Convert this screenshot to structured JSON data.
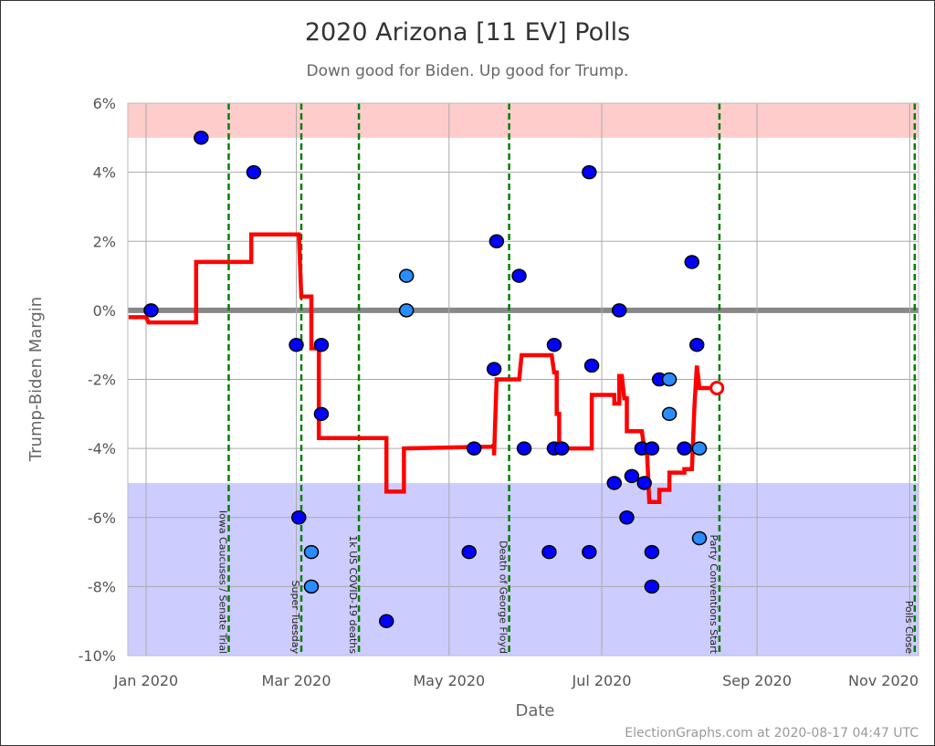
{
  "chart_data": {
    "type": "scatter",
    "title": "2020 Arizona [11 EV] Polls",
    "subtitle": "Down good for Biden. Up good for Trump.",
    "xlabel": "Date",
    "ylabel": "Trump-Biden Margin",
    "xlim": [
      "2019-12-25",
      "2020-11-04"
    ],
    "ylim": [
      -10,
      6
    ],
    "grid": true,
    "x_ticks": [
      {
        "date": "2020-01-01",
        "label": "Jan 2020"
      },
      {
        "date": "2020-03-01",
        "label": "Mar 2020"
      },
      {
        "date": "2020-05-01",
        "label": "May 2020"
      },
      {
        "date": "2020-07-01",
        "label": "Jul 2020"
      },
      {
        "date": "2020-09-01",
        "label": "Sep 2020"
      },
      {
        "date": "2020-11-01",
        "label": "Nov 2020"
      }
    ],
    "y_ticks": [
      {
        "value": 6,
        "label": "6%"
      },
      {
        "value": 4,
        "label": "4%"
      },
      {
        "value": 2,
        "label": "2%"
      },
      {
        "value": 0,
        "label": "0%"
      },
      {
        "value": -2,
        "label": "-2%"
      },
      {
        "value": -4,
        "label": "-4%"
      },
      {
        "value": -6,
        "label": "-6%"
      },
      {
        "value": -8,
        "label": "-8%"
      },
      {
        "value": -10,
        "label": "-10%"
      }
    ],
    "bands": [
      {
        "from": 5,
        "to": 6,
        "color": "#ffcccc"
      },
      {
        "from": -10,
        "to": -5,
        "color": "#ccccff"
      }
    ],
    "zero_line_color": "#888888",
    "colors": {
      "poll": "#0000ff",
      "poll_light": "#2a8cff",
      "average": "#ff0000",
      "event": "#008000"
    },
    "events": [
      {
        "date": "2020-02-03",
        "label": "Iowa Caucuses / Senate Trial"
      },
      {
        "date": "2020-03-03",
        "label": "Super Tuesday"
      },
      {
        "date": "2020-03-26",
        "label": "1k US COVID-19 deaths"
      },
      {
        "date": "2020-05-25",
        "label": "Death of George Floyd"
      },
      {
        "date": "2020-08-17",
        "label": "Party Conventions Start"
      },
      {
        "date": "2020-11-03",
        "label": "Polls Close"
      }
    ],
    "polls": [
      {
        "date": "2020-01-03",
        "value": 0,
        "light": false
      },
      {
        "date": "2020-01-23",
        "value": 5,
        "light": false
      },
      {
        "date": "2020-02-13",
        "value": 4,
        "light": false
      },
      {
        "date": "2020-03-01",
        "value": -1,
        "light": false
      },
      {
        "date": "2020-03-02",
        "value": -6,
        "light": false
      },
      {
        "date": "2020-03-07",
        "value": -7,
        "light": true
      },
      {
        "date": "2020-03-07",
        "value": -8,
        "light": true
      },
      {
        "date": "2020-03-11",
        "value": -1,
        "light": false
      },
      {
        "date": "2020-03-11",
        "value": -3,
        "light": false
      },
      {
        "date": "2020-04-06",
        "value": -9,
        "light": false
      },
      {
        "date": "2020-04-14",
        "value": 1,
        "light": true
      },
      {
        "date": "2020-04-14",
        "value": 0,
        "light": true
      },
      {
        "date": "2020-05-09",
        "value": -7,
        "light": false
      },
      {
        "date": "2020-05-11",
        "value": -4,
        "light": false
      },
      {
        "date": "2020-05-19",
        "value": -1.7,
        "light": false
      },
      {
        "date": "2020-05-20",
        "value": 2,
        "light": false
      },
      {
        "date": "2020-05-29",
        "value": 1,
        "light": false
      },
      {
        "date": "2020-05-31",
        "value": -4,
        "light": false
      },
      {
        "date": "2020-06-10",
        "value": -7,
        "light": false
      },
      {
        "date": "2020-06-12",
        "value": -1,
        "light": false
      },
      {
        "date": "2020-06-12",
        "value": -4,
        "light": false
      },
      {
        "date": "2020-06-15",
        "value": -4,
        "light": false
      },
      {
        "date": "2020-06-26",
        "value": 4,
        "light": false
      },
      {
        "date": "2020-06-26",
        "value": -7,
        "light": false
      },
      {
        "date": "2020-06-27",
        "value": -1.6,
        "light": false
      },
      {
        "date": "2020-07-06",
        "value": -5,
        "light": false
      },
      {
        "date": "2020-07-08",
        "value": 0,
        "light": false
      },
      {
        "date": "2020-07-11",
        "value": -6,
        "light": false
      },
      {
        "date": "2020-07-13",
        "value": -4.8,
        "light": false
      },
      {
        "date": "2020-07-17",
        "value": -4,
        "light": false
      },
      {
        "date": "2020-07-18",
        "value": -5,
        "light": false
      },
      {
        "date": "2020-07-21",
        "value": -4,
        "light": false
      },
      {
        "date": "2020-07-21",
        "value": -8,
        "light": false
      },
      {
        "date": "2020-07-21",
        "value": -7,
        "light": false
      },
      {
        "date": "2020-07-24",
        "value": -2,
        "light": false
      },
      {
        "date": "2020-07-28",
        "value": -2,
        "light": true
      },
      {
        "date": "2020-07-28",
        "value": -3,
        "light": true
      },
      {
        "date": "2020-08-03",
        "value": -4,
        "light": false
      },
      {
        "date": "2020-08-06",
        "value": 1.4,
        "light": false
      },
      {
        "date": "2020-08-08",
        "value": -1,
        "light": false
      },
      {
        "date": "2020-08-09",
        "value": -4,
        "light": true
      },
      {
        "date": "2020-08-09",
        "value": -6.6,
        "light": true
      }
    ],
    "average": [
      [
        "2019-12-25",
        -0.2
      ],
      [
        "2020-01-01",
        -0.2
      ],
      [
        "2020-01-02",
        -0.35
      ],
      [
        "2020-01-21",
        -0.35
      ],
      [
        "2020-01-21",
        1.4
      ],
      [
        "2020-02-12",
        1.4
      ],
      [
        "2020-02-12",
        2.2
      ],
      [
        "2020-03-02",
        2.2
      ],
      [
        "2020-03-03",
        0.4
      ],
      [
        "2020-03-07",
        0.4
      ],
      [
        "2020-03-07",
        -1.1
      ],
      [
        "2020-03-10",
        -1.1
      ],
      [
        "2020-03-10",
        -3.7
      ],
      [
        "2020-04-06",
        -3.7
      ],
      [
        "2020-04-06",
        -5.25
      ],
      [
        "2020-04-13",
        -5.25
      ],
      [
        "2020-04-13",
        -4
      ],
      [
        "2020-05-18",
        -3.95
      ],
      [
        "2020-05-19",
        -3.9
      ],
      [
        "2020-05-19",
        -4.2
      ],
      [
        "2020-05-20",
        -2
      ],
      [
        "2020-05-29",
        -2
      ],
      [
        "2020-05-30",
        -1.3
      ],
      [
        "2020-06-11",
        -1.3
      ],
      [
        "2020-06-12",
        -1.8
      ],
      [
        "2020-06-13",
        -1.8
      ],
      [
        "2020-06-13",
        -3
      ],
      [
        "2020-06-14",
        -3
      ],
      [
        "2020-06-14",
        -4
      ],
      [
        "2020-06-27",
        -4
      ],
      [
        "2020-06-27",
        -2.45
      ],
      [
        "2020-07-06",
        -2.45
      ],
      [
        "2020-07-06",
        -2.7
      ],
      [
        "2020-07-08",
        -2.7
      ],
      [
        "2020-07-08",
        -1.9
      ],
      [
        "2020-07-09",
        -1.9
      ],
      [
        "2020-07-10",
        -2.55
      ],
      [
        "2020-07-11",
        -2.55
      ],
      [
        "2020-07-11",
        -3.5
      ],
      [
        "2020-07-17",
        -3.5
      ],
      [
        "2020-07-18",
        -4
      ],
      [
        "2020-07-19",
        -4
      ],
      [
        "2020-07-20",
        -5.55
      ],
      [
        "2020-07-24",
        -5.55
      ],
      [
        "2020-07-24",
        -5.2
      ],
      [
        "2020-07-28",
        -5.2
      ],
      [
        "2020-07-28",
        -4.7
      ],
      [
        "2020-08-03",
        -4.7
      ],
      [
        "2020-08-03",
        -4.6
      ],
      [
        "2020-08-06",
        -4.6
      ],
      [
        "2020-08-07",
        -2.8
      ],
      [
        "2020-08-08",
        -1.6
      ],
      [
        "2020-08-09",
        -2.25
      ],
      [
        "2020-08-16",
        -2.25
      ]
    ],
    "current": {
      "date": "2020-08-16",
      "value": -2.25
    }
  },
  "footer": "ElectionGraphs.com at 2020-08-17 04:47 UTC"
}
